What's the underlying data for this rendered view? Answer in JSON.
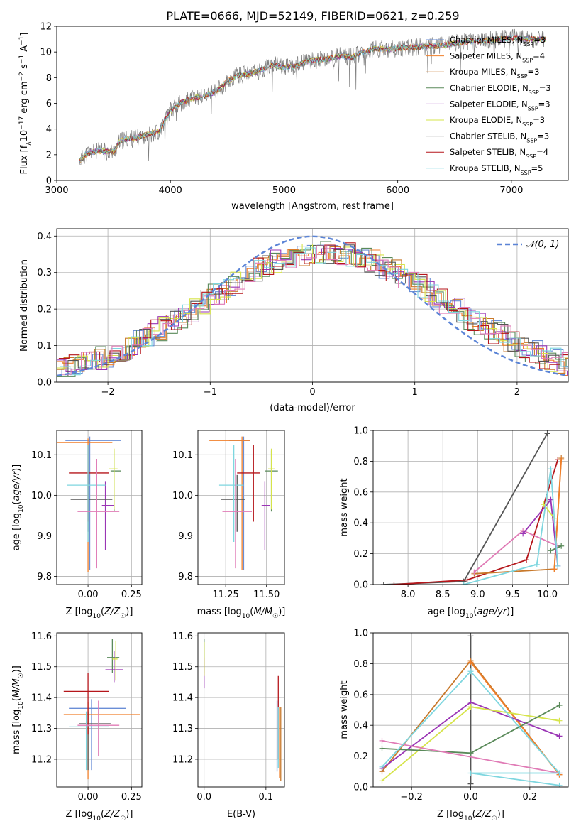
{
  "figure_title": "PLATE=0666, MJD=52149, FIBERID=0621, z=0.259",
  "colors": {
    "Chabrier MILES": "#6a8ed6",
    "Salpeter MILES": "#f07f2a",
    "Kroupa MILES": "#c8792b",
    "Chabrier ELODIE": "#5a8a5a",
    "Salpeter ELODIE": "#9a35b5",
    "Kroupa ELODIE": "#d6e44a",
    "Chabrier STELIB": "#555555",
    "Salpeter STELIB": "#b5161b",
    "Kroupa STELIB": "#7ed6df",
    "pink": "#e07bb6",
    "normal": "#5b84d6",
    "observed": "#808080"
  },
  "chart_data": [
    {
      "id": "spectrum",
      "type": "line",
      "xlabel": "wavelength [Angstrom, rest frame]",
      "ylabel": "Flux [f_λ 10^-17 erg cm^-2 s^-1 A^-1]",
      "xlim": [
        3000,
        7500
      ],
      "ylim": [
        0,
        12
      ],
      "xticks": [
        3000,
        4000,
        5000,
        6000,
        7000
      ],
      "yticks": [
        0,
        2,
        4,
        6,
        8,
        10,
        12
      ],
      "legend_position": "top-right",
      "legend": [
        {
          "label": "Chabrier MILES, N",
          "sub": "SSP",
          "suffix": "=3",
          "color": "#6a8ed6"
        },
        {
          "label": "Salpeter MILES, N",
          "sub": "SSP",
          "suffix": "=4",
          "color": "#f07f2a"
        },
        {
          "label": "Kroupa MILES, N",
          "sub": "SSP",
          "suffix": "=3",
          "color": "#c8792b"
        },
        {
          "label": "Chabrier ELODIE, N",
          "sub": "SSP",
          "suffix": "=3",
          "color": "#5a8a5a"
        },
        {
          "label": "Salpeter ELODIE, N",
          "sub": "SSP",
          "suffix": "=3",
          "color": "#9a35b5"
        },
        {
          "label": "Kroupa ELODIE, N",
          "sub": "SSP",
          "suffix": "=3",
          "color": "#d6e44a"
        },
        {
          "label": "Chabrier STELIB, N",
          "sub": "SSP",
          "suffix": "=3",
          "color": "#555555"
        },
        {
          "label": "Salpeter STELIB, N",
          "sub": "SSP",
          "suffix": "=4",
          "color": "#b5161b"
        },
        {
          "label": "Kroupa STELIB, N",
          "sub": "SSP",
          "suffix": "=5",
          "color": "#7ed6df"
        }
      ],
      "continuum": {
        "x": [
          3200,
          3250,
          3300,
          3400,
          3500,
          3550,
          3600,
          3700,
          3800,
          3900,
          4000,
          4100,
          4200,
          4300,
          4400,
          4500,
          4600,
          4700,
          4800,
          4900,
          5000,
          5100,
          5200,
          5300,
          5400,
          5500,
          5600,
          5700,
          5800,
          5900,
          6000,
          6200,
          6400,
          6600,
          6800,
          7000,
          7200,
          7300
        ],
        "y": [
          1.5,
          2.0,
          2.2,
          2.3,
          2.2,
          3.0,
          3.2,
          3.3,
          3.6,
          3.8,
          5.4,
          6.1,
          6.4,
          6.6,
          6.9,
          7.7,
          8.2,
          8.3,
          8.6,
          9.0,
          8.8,
          8.9,
          9.3,
          9.4,
          9.5,
          9.7,
          9.6,
          10.0,
          10.3,
          10.2,
          10.3,
          10.4,
          10.5,
          10.8,
          10.9,
          11.1,
          11.0,
          11.0
        ]
      }
    },
    {
      "id": "residuals",
      "type": "line",
      "xlabel": "(data-model)/error",
      "ylabel": "Normed distribution",
      "xlim": [
        -2.5,
        2.5
      ],
      "ylim": [
        0,
        0.42
      ],
      "xticks": [
        -2,
        -1,
        0,
        1,
        2
      ],
      "yticks": [
        0.0,
        0.1,
        0.2,
        0.3,
        0.4
      ],
      "legend_position": "top-right",
      "legend": [
        {
          "label": "𝒩(0, 1)",
          "color": "#5b84d6",
          "style": "dashed"
        }
      ],
      "normal": {
        "mu": 0,
        "sigma": 1
      }
    },
    {
      "id": "age-vs-Z",
      "type": "scatter",
      "xlabel": "Z [log10(Z/Z☉)]",
      "ylabel": "age [log10(age/yr)]",
      "xlim": [
        -0.18,
        0.31
      ],
      "ylim": [
        9.78,
        10.16
      ],
      "xticks": [
        0.0,
        0.25
      ],
      "yticks": [
        9.8,
        9.9,
        10.0,
        10.1
      ],
      "points": [
        {
          "c": "Chabrier MILES",
          "x": 0.01,
          "y": 10.135,
          "xerr": [
            0.14,
            0.18
          ],
          "yerr": [
            0.32,
            0.01
          ]
        },
        {
          "c": "Salpeter MILES",
          "x": 0.0,
          "y": 10.13,
          "xerr": [
            0.2,
            0.14
          ],
          "yerr": [
            0.32,
            0.01
          ]
        },
        {
          "c": "Chabrier ELODIE",
          "x": 0.15,
          "y": 10.06,
          "xerr": [
            0.02,
            0.04
          ],
          "yerr": [
            0.1,
            0.05
          ]
        },
        {
          "c": "Salpeter ELODIE",
          "x": 0.1,
          "y": 9.975,
          "xerr": [
            0.02,
            0.05
          ],
          "yerr": [
            0.11,
            0.06
          ]
        },
        {
          "c": "Kroupa ELODIE",
          "x": 0.15,
          "y": 10.065,
          "xerr": [
            0.03,
            0.02
          ],
          "yerr": [
            0.1,
            0.05
          ]
        },
        {
          "c": "Chabrier STELIB",
          "x": 0.0,
          "y": 9.99,
          "xerr": [
            0.1,
            0.14
          ],
          "yerr": [
            0.08,
            0.06
          ]
        },
        {
          "c": "Salpeter STELIB",
          "x": 0.0,
          "y": 10.055,
          "xerr": [
            0.11,
            0.12
          ],
          "yerr": [
            0.12,
            0.07
          ]
        },
        {
          "c": "Kroupa STELIB",
          "x": 0.0,
          "y": 10.025,
          "xerr": [
            0.12,
            0.1
          ],
          "yerr": [
            0.14,
            0.1
          ]
        },
        {
          "c": "pink",
          "x": 0.05,
          "y": 9.96,
          "xerr": [
            0.11,
            0.13
          ],
          "yerr": [
            0.14,
            0.13
          ]
        }
      ]
    },
    {
      "id": "age-vs-mass",
      "type": "scatter",
      "xlabel": "mass [log10(M/M☉)]",
      "ylabel": "",
      "xlim": [
        11.08,
        11.61
      ],
      "ylim": [
        9.78,
        10.16
      ],
      "xticks": [
        11.25,
        11.5
      ],
      "yticks": [
        9.8,
        9.9,
        10.0,
        10.1
      ],
      "points": [
        {
          "c": "Chabrier MILES",
          "x": 11.36,
          "y": 10.135,
          "xerr": [
            0.09,
            0.04
          ],
          "yerr": [
            0.32,
            0.01
          ]
        },
        {
          "c": "Salpeter MILES",
          "x": 11.35,
          "y": 10.135,
          "xerr": [
            0.2,
            0.05
          ],
          "yerr": [
            0.32,
            0.01
          ]
        },
        {
          "c": "Chabrier ELODIE",
          "x": 11.53,
          "y": 10.06,
          "xerr": [
            0.04,
            0.04
          ],
          "yerr": [
            0.1,
            0.05
          ]
        },
        {
          "c": "Salpeter ELODIE",
          "x": 11.49,
          "y": 9.975,
          "xerr": [
            0.02,
            0.03
          ],
          "yerr": [
            0.11,
            0.06
          ]
        },
        {
          "c": "Kroupa ELODIE",
          "x": 11.53,
          "y": 10.065,
          "xerr": [
            0.02,
            0.02
          ],
          "yerr": [
            0.1,
            0.05
          ]
        },
        {
          "c": "Chabrier STELIB",
          "x": 11.32,
          "y": 9.99,
          "xerr": [
            0.1,
            0.05
          ],
          "yerr": [
            0.08,
            0.06
          ]
        },
        {
          "c": "Salpeter STELIB",
          "x": 11.42,
          "y": 10.055,
          "xerr": [
            0.1,
            0.04
          ],
          "yerr": [
            0.12,
            0.07
          ]
        },
        {
          "c": "Kroupa STELIB",
          "x": 11.3,
          "y": 10.025,
          "xerr": [
            0.09,
            0.06
          ],
          "yerr": [
            0.14,
            0.1
          ]
        },
        {
          "c": "pink",
          "x": 11.31,
          "y": 9.96,
          "xerr": [
            0.08,
            0.1
          ],
          "yerr": [
            0.14,
            0.13
          ]
        }
      ]
    },
    {
      "id": "weight-vs-age",
      "type": "line",
      "xlabel": "age [log10(age/yr)]",
      "ylabel": "mass weight",
      "xlim": [
        7.5,
        10.3
      ],
      "ylim": [
        0,
        1
      ],
      "xticks": [
        8.0,
        8.5,
        9.0,
        9.5,
        10.0
      ],
      "yticks": [
        0.0,
        0.2,
        0.4,
        0.6,
        0.8,
        1.0
      ],
      "series": [
        {
          "c": "Chabrier STELIB",
          "x": [
            7.65,
            8.8,
            10.0
          ],
          "y": [
            0.0,
            0.02,
            0.98
          ]
        },
        {
          "c": "Salpeter STELIB",
          "x": [
            7.8,
            8.85,
            9.7,
            10.15
          ],
          "y": [
            0.0,
            0.03,
            0.16,
            0.81
          ]
        },
        {
          "c": "Kroupa MILES",
          "x": [
            8.95,
            10.1,
            10.2
          ],
          "y": [
            0.07,
            0.1,
            0.82
          ]
        },
        {
          "c": "Salpeter MILES",
          "x": [
            10.1,
            10.2
          ],
          "y": [
            0.1,
            0.81
          ]
        },
        {
          "c": "pink",
          "x": [
            8.95,
            9.65,
            10.15
          ],
          "y": [
            0.08,
            0.35,
            0.25
          ]
        },
        {
          "c": "Salpeter ELODIE",
          "x": [
            9.65,
            10.05,
            10.15
          ],
          "y": [
            0.33,
            0.55,
            0.12
          ]
        },
        {
          "c": "Chabrier ELODIE",
          "x": [
            10.05,
            10.2
          ],
          "y": [
            0.22,
            0.25
          ]
        },
        {
          "c": "Kroupa ELODIE",
          "x": [
            9.95,
            10.1
          ],
          "y": [
            0.52,
            0.43
          ]
        },
        {
          "c": "Kroupa STELIB",
          "x": [
            8.8,
            9.85,
            10.05,
            10.15
          ],
          "y": [
            0.0,
            0.13,
            0.75,
            0.12
          ]
        }
      ]
    },
    {
      "id": "mass-vs-Z",
      "type": "scatter",
      "xlabel": "Z [log10(Z/Z☉)]",
      "ylabel": "mass [log10(M/M☉)]",
      "xlim": [
        -0.18,
        0.31
      ],
      "ylim": [
        11.11,
        11.61
      ],
      "xticks": [
        0.0,
        0.25
      ],
      "yticks": [
        11.2,
        11.3,
        11.4,
        11.5,
        11.6
      ],
      "points": [
        {
          "c": "Chabrier MILES",
          "x": 0.02,
          "y": 11.365,
          "xerr": [
            0.13,
            0.2
          ],
          "yerr": [
            0.2,
            0.03
          ]
        },
        {
          "c": "Salpeter MILES",
          "x": 0.0,
          "y": 11.345,
          "xerr": [
            0.14,
            0.3
          ],
          "yerr": [
            0.21,
            0.04
          ]
        },
        {
          "c": "Chabrier ELODIE",
          "x": 0.14,
          "y": 11.53,
          "xerr": [
            0.03,
            0.04
          ],
          "yerr": [
            0.05,
            0.06
          ]
        },
        {
          "c": "Salpeter ELODIE",
          "x": 0.15,
          "y": 11.49,
          "xerr": [
            0.05,
            0.05
          ],
          "yerr": [
            0.04,
            0.06
          ]
        },
        {
          "c": "Kroupa ELODIE",
          "x": 0.16,
          "y": 11.525,
          "xerr": [
            0.02,
            0.01
          ],
          "yerr": [
            0.07,
            0.06
          ]
        },
        {
          "c": "Chabrier STELIB",
          "x": 0.0,
          "y": 11.315,
          "xerr": [
            0.05,
            0.13
          ],
          "yerr": [
            0.15,
            0.04
          ]
        },
        {
          "c": "Salpeter STELIB",
          "x": 0.0,
          "y": 11.42,
          "xerr": [
            0.14,
            0.12
          ],
          "yerr": [
            0.14,
            0.06
          ]
        },
        {
          "c": "Kroupa STELIB",
          "x": -0.01,
          "y": 11.305,
          "xerr": [
            0.1,
            0.13
          ],
          "yerr": [
            0.14,
            0.05
          ]
        },
        {
          "c": "pink",
          "x": 0.06,
          "y": 11.31,
          "xerr": [
            0.12,
            0.12
          ],
          "yerr": [
            0.1,
            0.08
          ]
        }
      ]
    },
    {
      "id": "mass-vs-EBV",
      "type": "scatter",
      "xlabel": "E(B-V)",
      "ylabel": "",
      "xlim": [
        -0.01,
        0.13
      ],
      "ylim": [
        11.11,
        11.61
      ],
      "xticks": [
        0.0,
        0.1
      ],
      "yticks": [
        11.2,
        11.3,
        11.4,
        11.5,
        11.6
      ],
      "points": [
        {
          "c": "Chabrier MILES",
          "x": 0.118,
          "y": 11.28,
          "xerr": [
            0,
            0
          ],
          "yerr": [
            0.12,
            0.11
          ]
        },
        {
          "c": "Salpeter MILES",
          "x": 0.122,
          "y": 11.26,
          "xerr": [
            0,
            0
          ],
          "yerr": [
            0.12,
            0.11
          ]
        },
        {
          "c": "Kroupa MILES",
          "x": 0.124,
          "y": 11.25,
          "xerr": [
            0,
            0
          ],
          "yerr": [
            0.12,
            0.12
          ]
        },
        {
          "c": "Salpeter STELIB",
          "x": 0.12,
          "y": 11.33,
          "xerr": [
            0,
            0
          ],
          "yerr": [
            0.13,
            0.14
          ]
        },
        {
          "c": "Kroupa STELIB",
          "x": 0.12,
          "y": 11.27,
          "xerr": [
            0,
            0
          ],
          "yerr": [
            0.1,
            0.1
          ]
        },
        {
          "c": "Chabrier ELODIE",
          "x": 0.0,
          "y": 11.53,
          "xerr": [
            0,
            0
          ],
          "yerr": [
            0.05,
            0.06
          ]
        },
        {
          "c": "Salpeter ELODIE",
          "x": 0.0,
          "y": 11.49,
          "xerr": [
            0,
            0
          ],
          "yerr": [
            0.06,
            0.04
          ]
        },
        {
          "c": "Kroupa ELODIE",
          "x": 0.0,
          "y": 11.52,
          "xerr": [
            0,
            0
          ],
          "yerr": [
            0.05,
            0.06
          ]
        }
      ]
    },
    {
      "id": "weight-vs-Z",
      "type": "line",
      "xlabel": "Z [log10(Z/Z☉)]",
      "ylabel": "mass weight",
      "xlim": [
        -0.33,
        0.33
      ],
      "ylim": [
        0,
        1
      ],
      "xticks": [
        -0.2,
        0.0,
        0.2
      ],
      "yticks": [
        0.0,
        0.2,
        0.4,
        0.6,
        0.8,
        1.0
      ],
      "series": [
        {
          "c": "Chabrier STELIB",
          "x": [
            0.0,
            0.0
          ],
          "y": [
            0.02,
            0.98
          ]
        },
        {
          "c": "Kroupa MILES",
          "x": [
            -0.3,
            0.0,
            0.3
          ],
          "y": [
            0.1,
            0.82,
            0.08
          ]
        },
        {
          "c": "Salpeter MILES",
          "x": [
            0.0,
            0.3
          ],
          "y": [
            0.81,
            0.08
          ]
        },
        {
          "c": "Salpeter ELODIE",
          "x": [
            -0.3,
            0.0,
            0.3
          ],
          "y": [
            0.12,
            0.55,
            0.33
          ]
        },
        {
          "c": "Kroupa ELODIE",
          "x": [
            -0.3,
            0.0,
            0.3
          ],
          "y": [
            0.04,
            0.52,
            0.43
          ]
        },
        {
          "c": "Chabrier ELODIE",
          "x": [
            -0.3,
            0.0,
            0.3
          ],
          "y": [
            0.25,
            0.22,
            0.53
          ]
        },
        {
          "c": "pink",
          "x": [
            -0.3,
            0.3
          ],
          "y": [
            0.3,
            0.09
          ]
        },
        {
          "c": "Kroupa STELIB",
          "x": [
            -0.3,
            0.0,
            0.3,
            0.0,
            0.3
          ],
          "y": [
            0.13,
            0.75,
            0.09,
            0.09,
            0.01
          ]
        }
      ]
    }
  ]
}
